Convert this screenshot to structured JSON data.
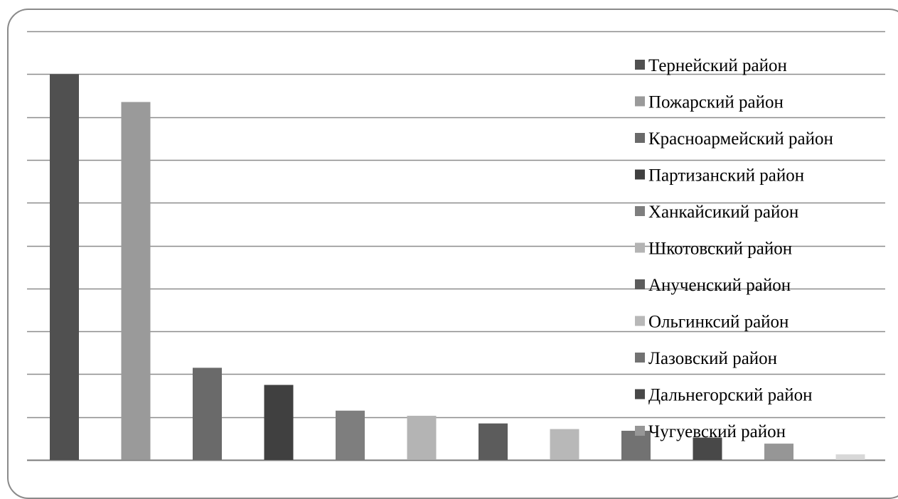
{
  "chart_data": {
    "type": "bar",
    "categories": [
      "Тернейский район",
      "Пожарский район",
      "Красноармейский район",
      "Партизанский район",
      "Ханкайсикий район",
      "Шкотовский район",
      "Анученский район",
      "Ольгинксий район",
      "Лазовский район",
      "Дальнегорский район",
      "Чугуевский район",
      ""
    ],
    "values": [
      9.0,
      8.35,
      2.15,
      1.75,
      1.15,
      1.03,
      0.85,
      0.72,
      0.68,
      0.52,
      0.38,
      0.13
    ],
    "colors": [
      "#505050",
      "#9a9a9a",
      "#6a6a6a",
      "#404040",
      "#7e7e7e",
      "#b4b4b4",
      "#5c5c5c",
      "#b8b8b8",
      "#727272",
      "#484848",
      "#969696",
      "#d8d8d8"
    ],
    "legend": [
      "Тернейский район",
      "Пожарский район",
      "Красноармейский район",
      "Партизанский район",
      "Ханкайсикий район",
      "Шкотовский район",
      "Анученский район",
      "Ольгинксий район",
      "Лазовский район",
      "Дальнегорский район",
      "Чугуевский район"
    ],
    "ylim": [
      0,
      10
    ],
    "grid": true,
    "legend_position": "right"
  }
}
